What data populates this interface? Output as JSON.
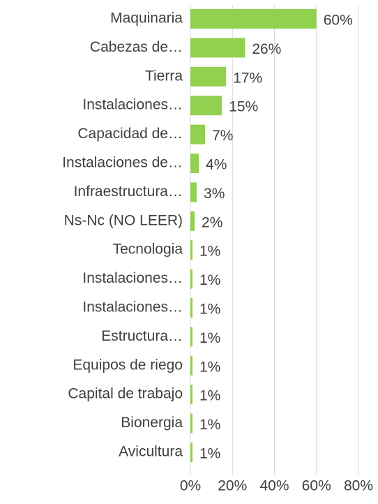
{
  "chart_data": {
    "type": "bar",
    "orientation": "horizontal",
    "categories": [
      "Maquinaria",
      "Cabezas de…",
      "Tierra",
      "Instalaciones…",
      "Capacidad de…",
      "Instalaciones de…",
      "Infraestructura…",
      "Ns-Nc (NO LEER)",
      "Tecnologia",
      "Instalaciones…",
      "Instalaciones…",
      "Estructura…",
      "Equipos de riego",
      "Capital de trabajo",
      "Bionergia",
      "Avicultura"
    ],
    "values": [
      60,
      26,
      17,
      15,
      7,
      4,
      3,
      2,
      1,
      1,
      1,
      1,
      1,
      1,
      1,
      1
    ],
    "value_labels": [
      "60%",
      "26%",
      "17%",
      "15%",
      "7%",
      "4%",
      "3%",
      "2%",
      "1%",
      "1%",
      "1%",
      "1%",
      "1%",
      "1%",
      "1%",
      "1%"
    ],
    "color": "#92d050",
    "xlim": [
      0,
      80
    ],
    "xticks": [
      {
        "value": 0,
        "label": "0%"
      },
      {
        "value": 20,
        "label": "20%"
      },
      {
        "value": 40,
        "label": "40%"
      },
      {
        "value": 60,
        "label": "60%"
      },
      {
        "value": 80,
        "label": "80%"
      }
    ],
    "grid": true
  }
}
